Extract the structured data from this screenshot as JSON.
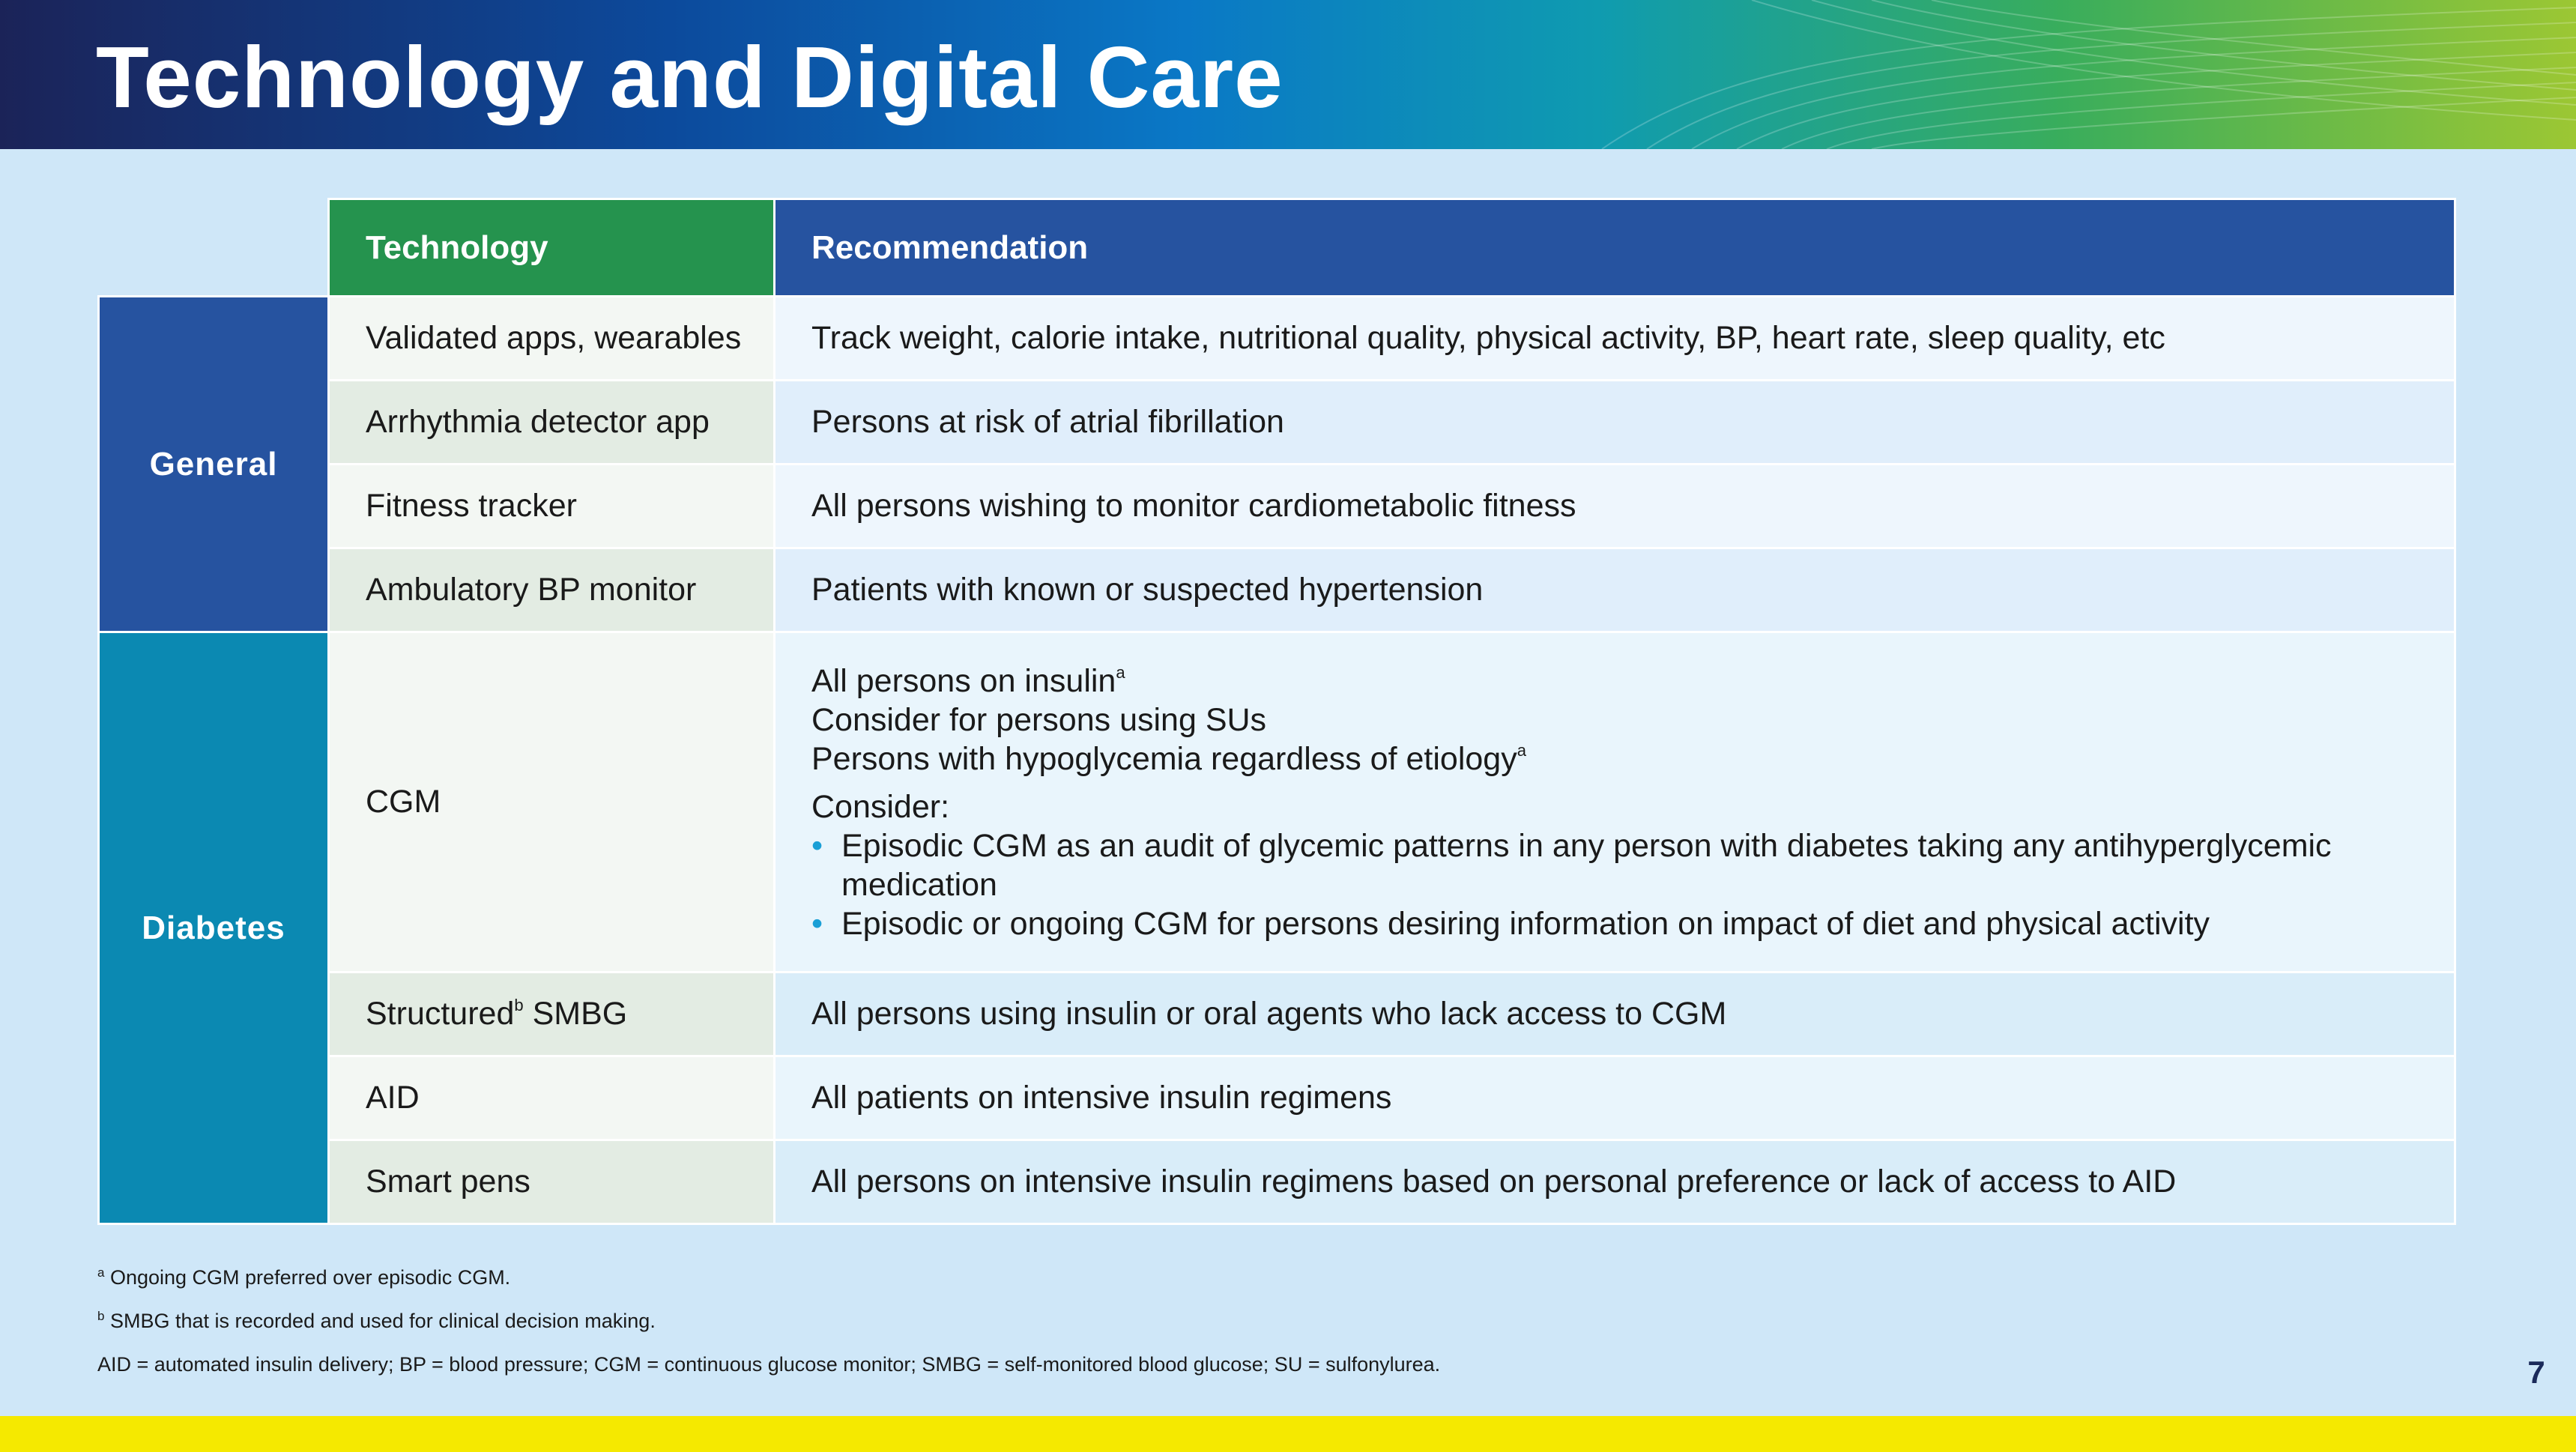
{
  "header": {
    "title": "Technology and Digital Care"
  },
  "table": {
    "col_technology": "Technology",
    "col_recommendation": "Recommendation",
    "categories": {
      "general": "General",
      "diabetes": "Diabetes"
    },
    "general_rows": [
      {
        "technology": "Validated apps, wearables",
        "recommendation": "Track weight, calorie intake, nutritional quality, physical activity, BP, heart rate, sleep quality, etc"
      },
      {
        "technology": "Arrhythmia detector app",
        "recommendation": "Persons at risk of atrial fibrillation"
      },
      {
        "technology": "Fitness tracker",
        "recommendation": "All persons wishing to monitor cardiometabolic fitness"
      },
      {
        "technology": "Ambulatory BP monitor",
        "recommendation": "Patients with known or suspected hypertension"
      }
    ],
    "cgm_row": {
      "technology": "CGM",
      "line1": "All persons on insulin",
      "line1_sup": "a",
      "line2": "Consider for persons using SUs",
      "line3": "Persons with hypoglycemia regardless of etiology",
      "line3_sup": "a",
      "consider_label": "Consider:",
      "bullet_char": "•",
      "bullets": [
        "Episodic CGM as an audit of glycemic patterns in any person with diabetes taking any antihyperglycemic medication",
        "Episodic or ongoing CGM for persons desiring information on impact of diet and physical activity"
      ]
    },
    "smbg_row": {
      "technology_pre": "Structured",
      "technology_sup": "b",
      "technology_post": " SMBG",
      "recommendation": "All persons using insulin or oral agents who lack access to CGM"
    },
    "diabetes_rows": [
      {
        "technology": "AID",
        "recommendation": "All patients on intensive insulin regimens"
      },
      {
        "technology": "Smart pens",
        "recommendation": "All persons on intensive insulin regimens based on personal preference or lack of access to AID"
      }
    ]
  },
  "footnotes": {
    "a_sup": "a",
    "a_text": " Ongoing CGM preferred over episodic CGM.",
    "b_sup": "b",
    "b_text": " SMBG that is recorded and used for clinical decision making.",
    "abbreviations": "AID = automated insulin delivery; BP = blood pressure; CGM = continuous glucose monitor; SMBG = self-monitored blood glucose; SU = sulfonylurea."
  },
  "page_number": "7",
  "colors": {
    "header_dark": "#1b2358",
    "header_blue": "#0a78c6",
    "header_green": "#9cc733",
    "tech_header": "#25934e",
    "rec_header": "#2653a0",
    "general": "#2653a0",
    "diabetes": "#0b89b2",
    "yellow": "#f5e900",
    "background": "#cfe7f8"
  }
}
